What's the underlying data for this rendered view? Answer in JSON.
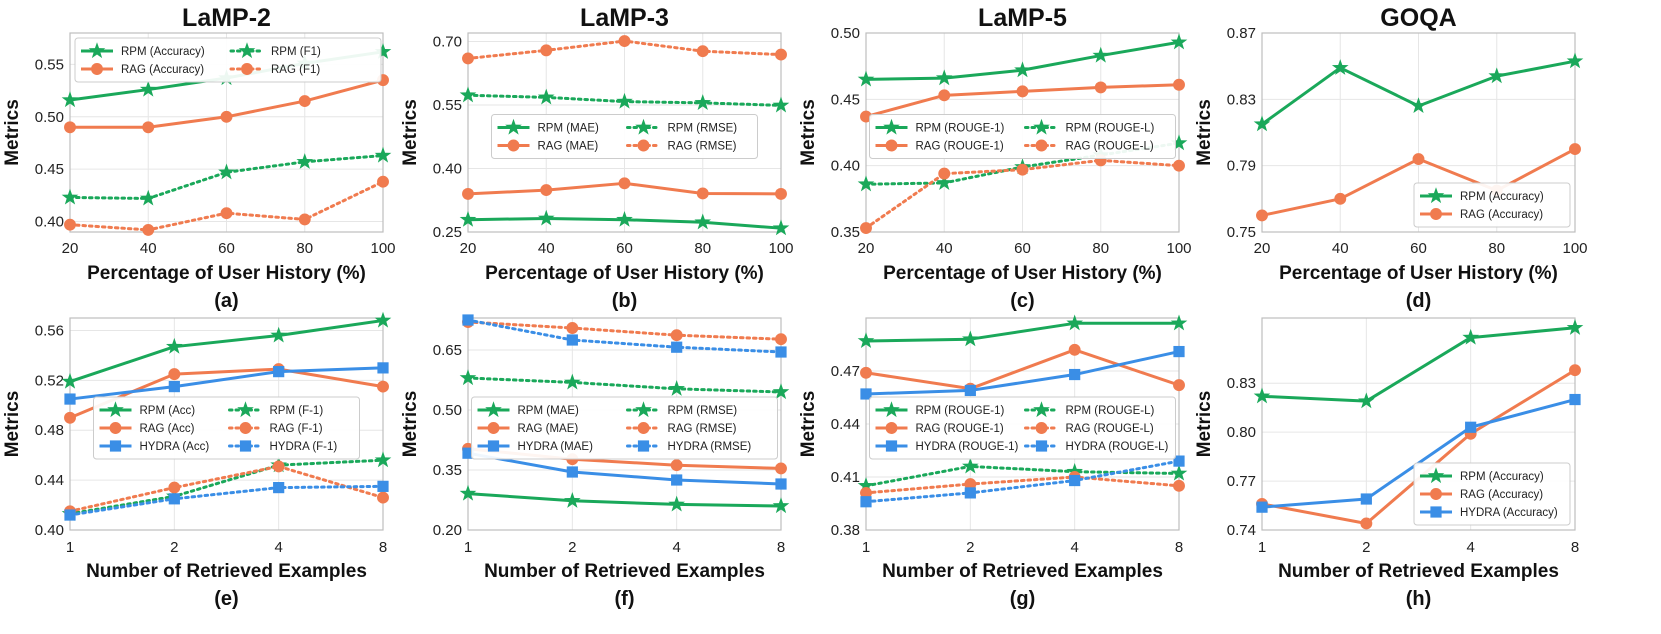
{
  "colors": {
    "rpm": "#1aa85a",
    "rag": "#f07b4f",
    "hydra": "#3a8ee6",
    "grid": "#e6e6e6",
    "axis": "#bdbdbd"
  },
  "chart_data": [
    {
      "type": "line",
      "id": "a",
      "title": "LaMP-2",
      "sublabel": "(a)",
      "xlabel": "Percentage of User History (%)",
      "ylabel": "Metrics",
      "x": [
        20,
        40,
        60,
        80,
        100
      ],
      "xscale": "linear",
      "xlim": [
        20,
        100
      ],
      "xticks": [
        "20",
        "40",
        "60",
        "80",
        "100"
      ],
      "ylim": [
        0.39,
        0.58
      ],
      "yticks": [
        0.4,
        0.45,
        0.5,
        0.55
      ],
      "ytick_labels": [
        "0.40",
        "0.45",
        "0.50",
        "0.55"
      ],
      "legend": {
        "loc": "top-left",
        "cols": 2
      },
      "series": [
        {
          "name": "RPM (Accuracy)",
          "color": "rpm",
          "marker": "star",
          "style": "solid",
          "values": [
            0.516,
            0.526,
            0.537,
            0.551,
            0.562
          ]
        },
        {
          "name": "RAG (Accuracy)",
          "color": "rag",
          "marker": "circle",
          "style": "solid",
          "values": [
            0.49,
            0.49,
            0.5,
            0.515,
            0.535
          ]
        },
        {
          "name": "RPM (F1)",
          "color": "rpm",
          "marker": "star",
          "style": "dotted",
          "values": [
            0.423,
            0.422,
            0.447,
            0.457,
            0.463
          ]
        },
        {
          "name": "RAG (F1)",
          "color": "rag",
          "marker": "circle",
          "style": "dotted",
          "values": [
            0.397,
            0.392,
            0.408,
            0.402,
            0.438
          ]
        }
      ]
    },
    {
      "type": "line",
      "id": "b",
      "title": "LaMP-3",
      "sublabel": "(b)",
      "xlabel": "Percentage of User History (%)",
      "ylabel": "Metrics",
      "x": [
        20,
        40,
        60,
        80,
        100
      ],
      "xscale": "linear",
      "xlim": [
        20,
        100
      ],
      "xticks": [
        "20",
        "40",
        "60",
        "80",
        "100"
      ],
      "ylim": [
        0.25,
        0.72
      ],
      "yticks": [
        0.25,
        0.4,
        0.55,
        0.7
      ],
      "ytick_labels": [
        "0.25",
        "0.40",
        "0.55",
        "0.70"
      ],
      "legend": {
        "loc": "center",
        "cols": 2
      },
      "series": [
        {
          "name": "RPM (MAE)",
          "color": "rpm",
          "marker": "star",
          "style": "solid",
          "values": [
            0.279,
            0.282,
            0.279,
            0.273,
            0.259
          ]
        },
        {
          "name": "RAG (MAE)",
          "color": "rag",
          "marker": "circle",
          "style": "solid",
          "values": [
            0.34,
            0.349,
            0.365,
            0.341,
            0.34
          ]
        },
        {
          "name": "RPM (RMSE)",
          "color": "rpm",
          "marker": "star",
          "style": "dotted",
          "values": [
            0.573,
            0.568,
            0.558,
            0.555,
            0.549
          ]
        },
        {
          "name": "RAG (RMSE)",
          "color": "rag",
          "marker": "circle",
          "style": "dotted",
          "values": [
            0.66,
            0.679,
            0.701,
            0.677,
            0.669
          ]
        }
      ]
    },
    {
      "type": "line",
      "id": "c",
      "title": "LaMP-5",
      "sublabel": "(c)",
      "xlabel": "Percentage of User History (%)",
      "ylabel": "Metrics",
      "x": [
        20,
        40,
        60,
        80,
        100
      ],
      "xscale": "linear",
      "xlim": [
        20,
        100
      ],
      "xticks": [
        "20",
        "40",
        "60",
        "80",
        "100"
      ],
      "ylim": [
        0.35,
        0.5
      ],
      "yticks": [
        0.35,
        0.4,
        0.45,
        0.5
      ],
      "ytick_labels": [
        "0.35",
        "0.40",
        "0.45",
        "0.50"
      ],
      "legend": {
        "loc": "center",
        "cols": 2
      },
      "series": [
        {
          "name": "RPM (ROUGE-1)",
          "color": "rpm",
          "marker": "star",
          "style": "solid",
          "values": [
            0.465,
            0.466,
            0.472,
            0.483,
            0.493
          ]
        },
        {
          "name": "RAG (ROUGE-1)",
          "color": "rag",
          "marker": "circle",
          "style": "solid",
          "values": [
            0.437,
            0.453,
            0.456,
            0.459,
            0.461
          ]
        },
        {
          "name": "RPM (ROUGE-L)",
          "color": "rpm",
          "marker": "star",
          "style": "dotted",
          "values": [
            0.386,
            0.387,
            0.399,
            0.408,
            0.417
          ]
        },
        {
          "name": "RAG (ROUGE-L)",
          "color": "rag",
          "marker": "circle",
          "style": "dotted",
          "values": [
            0.353,
            0.394,
            0.397,
            0.404,
            0.4
          ]
        }
      ]
    },
    {
      "type": "line",
      "id": "d",
      "title": "GOQA",
      "sublabel": "(d)",
      "xlabel": "Percentage of User History (%)",
      "ylabel": "Metrics",
      "x": [
        20,
        40,
        60,
        80,
        100
      ],
      "xscale": "linear",
      "xlim": [
        20,
        100
      ],
      "xticks": [
        "20",
        "40",
        "60",
        "80",
        "100"
      ],
      "ylim": [
        0.75,
        0.87
      ],
      "yticks": [
        0.75,
        0.79,
        0.83,
        0.87
      ],
      "ytick_labels": [
        "0.75",
        "0.79",
        "0.83",
        "0.87"
      ],
      "legend": {
        "loc": "bottom-right",
        "cols": 1
      },
      "series": [
        {
          "name": "RPM (Accuracy)",
          "color": "rpm",
          "marker": "star",
          "style": "solid",
          "values": [
            0.815,
            0.849,
            0.826,
            0.844,
            0.853
          ]
        },
        {
          "name": "RAG (Accuracy)",
          "color": "rag",
          "marker": "circle",
          "style": "solid",
          "values": [
            0.76,
            0.77,
            0.794,
            0.775,
            0.8
          ]
        }
      ]
    },
    {
      "type": "line",
      "id": "e",
      "title": "",
      "sublabel": "(e)",
      "xlabel": "Number of Retrieved Examples",
      "ylabel": "Metrics",
      "x": [
        1,
        2,
        4,
        8
      ],
      "xscale": "log2",
      "xlim": [
        1,
        8
      ],
      "xticks": [
        "1",
        "2",
        "4",
        "8"
      ],
      "ylim": [
        0.4,
        0.57
      ],
      "yticks": [
        0.4,
        0.44,
        0.48,
        0.52,
        0.56
      ],
      "ytick_labels": [
        "0.40",
        "0.44",
        "0.48",
        "0.52",
        "0.56"
      ],
      "legend": {
        "loc": "center",
        "cols": 2
      },
      "series": [
        {
          "name": "RPM (Acc)",
          "color": "rpm",
          "marker": "star",
          "style": "solid",
          "values": [
            0.519,
            0.547,
            0.556,
            0.568
          ]
        },
        {
          "name": "RAG (Acc)",
          "color": "rag",
          "marker": "circle",
          "style": "solid",
          "values": [
            0.49,
            0.525,
            0.529,
            0.515
          ]
        },
        {
          "name": "HYDRA (Acc)",
          "color": "hydra",
          "marker": "square",
          "style": "solid",
          "values": [
            0.505,
            0.515,
            0.527,
            0.53
          ]
        },
        {
          "name": "RPM (F-1)",
          "color": "rpm",
          "marker": "star",
          "style": "dotted",
          "values": [
            0.413,
            0.427,
            0.452,
            0.456
          ]
        },
        {
          "name": "RAG (F-1)",
          "color": "rag",
          "marker": "circle",
          "style": "dotted",
          "values": [
            0.415,
            0.434,
            0.451,
            0.426
          ]
        },
        {
          "name": "HYDRA (F-1)",
          "color": "hydra",
          "marker": "square",
          "style": "dotted",
          "values": [
            0.412,
            0.425,
            0.434,
            0.435
          ]
        }
      ]
    },
    {
      "type": "line",
      "id": "f",
      "title": "",
      "sublabel": "(f)",
      "xlabel": "Number of Retrieved Examples",
      "ylabel": "Metrics",
      "x": [
        1,
        2,
        4,
        8
      ],
      "xscale": "log2",
      "xlim": [
        1,
        8
      ],
      "xticks": [
        "1",
        "2",
        "4",
        "8"
      ],
      "ylim": [
        0.2,
        0.73
      ],
      "yticks": [
        0.2,
        0.35,
        0.5,
        0.65
      ],
      "ytick_labels": [
        "0.20",
        "0.35",
        "0.50",
        "0.65"
      ],
      "legend": {
        "loc": "center",
        "cols": 2
      },
      "series": [
        {
          "name": "RPM (MAE)",
          "color": "rpm",
          "marker": "star",
          "style": "solid",
          "values": [
            0.291,
            0.273,
            0.264,
            0.26
          ]
        },
        {
          "name": "RAG (MAE)",
          "color": "rag",
          "marker": "circle",
          "style": "solid",
          "values": [
            0.403,
            0.377,
            0.362,
            0.354
          ]
        },
        {
          "name": "HYDRA (MAE)",
          "color": "hydra",
          "marker": "square",
          "style": "solid",
          "values": [
            0.392,
            0.345,
            0.325,
            0.315
          ]
        },
        {
          "name": "RPM (RMSE)",
          "color": "rpm",
          "marker": "star",
          "style": "dotted",
          "values": [
            0.58,
            0.569,
            0.553,
            0.545
          ]
        },
        {
          "name": "RAG (RMSE)",
          "color": "rag",
          "marker": "circle",
          "style": "dotted",
          "values": [
            0.72,
            0.705,
            0.687,
            0.677
          ]
        },
        {
          "name": "HYDRA (RMSE)",
          "color": "hydra",
          "marker": "square",
          "style": "dotted",
          "values": [
            0.725,
            0.675,
            0.657,
            0.645
          ]
        }
      ]
    },
    {
      "type": "line",
      "id": "g",
      "title": "",
      "sublabel": "(g)",
      "xlabel": "Number of Retrieved Examples",
      "ylabel": "Metrics",
      "x": [
        1,
        2,
        4,
        8
      ],
      "xscale": "log2",
      "xlim": [
        1,
        8
      ],
      "xticks": [
        "1",
        "2",
        "4",
        "8"
      ],
      "ylim": [
        0.38,
        0.5
      ],
      "yticks": [
        0.38,
        0.41,
        0.44,
        0.47
      ],
      "ytick_labels": [
        "0.38",
        "0.41",
        "0.44",
        "0.47"
      ],
      "legend": {
        "loc": "center",
        "cols": 2
      },
      "series": [
        {
          "name": "RPM (ROUGE-1)",
          "color": "rpm",
          "marker": "star",
          "style": "solid",
          "values": [
            0.487,
            0.488,
            0.497,
            0.497
          ]
        },
        {
          "name": "RAG (ROUGE-1)",
          "color": "rag",
          "marker": "circle",
          "style": "solid",
          "values": [
            0.469,
            0.46,
            0.482,
            0.462
          ]
        },
        {
          "name": "HYDRA (ROUGE-1)",
          "color": "hydra",
          "marker": "square",
          "style": "solid",
          "values": [
            0.457,
            0.459,
            0.468,
            0.481
          ]
        },
        {
          "name": "RPM (ROUGE-L)",
          "color": "rpm",
          "marker": "star",
          "style": "dotted",
          "values": [
            0.405,
            0.416,
            0.413,
            0.412
          ]
        },
        {
          "name": "RAG (ROUGE-L)",
          "color": "rag",
          "marker": "circle",
          "style": "dotted",
          "values": [
            0.401,
            0.406,
            0.41,
            0.405
          ]
        },
        {
          "name": "HYDRA (ROUGE-L)",
          "color": "hydra",
          "marker": "square",
          "style": "dotted",
          "values": [
            0.396,
            0.401,
            0.408,
            0.419
          ]
        }
      ]
    },
    {
      "type": "line",
      "id": "h",
      "title": "",
      "sublabel": "(h)",
      "xlabel": "Number of Retrieved Examples",
      "ylabel": "Metrics",
      "x": [
        1,
        2,
        4,
        8
      ],
      "xscale": "log2",
      "xlim": [
        1,
        8
      ],
      "xticks": [
        "1",
        "2",
        "4",
        "8"
      ],
      "ylim": [
        0.74,
        0.87
      ],
      "yticks": [
        0.74,
        0.77,
        0.8,
        0.83
      ],
      "ytick_labels": [
        "0.74",
        "0.77",
        "0.80",
        "0.83"
      ],
      "legend": {
        "loc": "bottom-right",
        "cols": 1
      },
      "series": [
        {
          "name": "RPM (Accuracy)",
          "color": "rpm",
          "marker": "star",
          "style": "solid",
          "values": [
            0.822,
            0.819,
            0.858,
            0.864
          ]
        },
        {
          "name": "RAG (Accuracy)",
          "color": "rag",
          "marker": "circle",
          "style": "solid",
          "values": [
            0.756,
            0.744,
            0.799,
            0.838
          ]
        },
        {
          "name": "HYDRA (Accuracy)",
          "color": "hydra",
          "marker": "square",
          "style": "solid",
          "values": [
            0.754,
            0.759,
            0.803,
            0.82
          ]
        }
      ]
    }
  ]
}
